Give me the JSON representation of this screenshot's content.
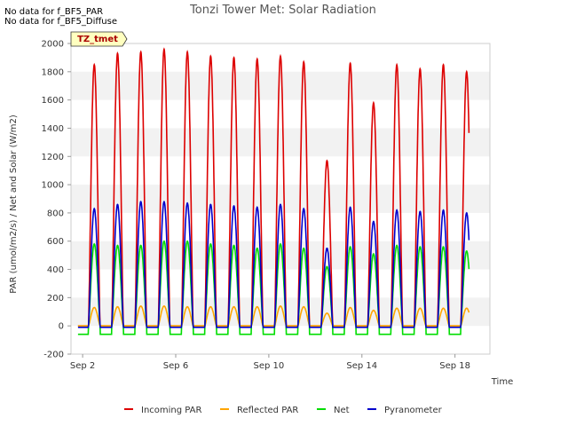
{
  "notes": [
    "No data for f_BF5_PAR",
    "No data for f_BF5_Diffuse"
  ],
  "chart_data": {
    "type": "line",
    "title": "Tonzi Tower Met: Solar Radiation",
    "xlabel": "Time",
    "ylabel": "PAR (umol/m2/s) / Net and Solar (W/m2)",
    "badge": "TZ_tmet",
    "xlim": [
      1.5,
      19.5
    ],
    "ylim": [
      -200,
      2000
    ],
    "xticks": [
      {
        "value": 2,
        "label": "Sep 2"
      },
      {
        "value": 6,
        "label": "Sep 6"
      },
      {
        "value": 10,
        "label": "Sep 10"
      },
      {
        "value": 14,
        "label": "Sep 14"
      },
      {
        "value": 18,
        "label": "Sep 18"
      }
    ],
    "yticks": [
      -200,
      0,
      200,
      400,
      600,
      800,
      1000,
      1200,
      1400,
      1600,
      1800,
      2000
    ],
    "grid_bands": true,
    "legend_position": "bottom-center",
    "days": [
      2,
      3,
      4,
      5,
      6,
      7,
      8,
      9,
      10,
      11,
      12,
      13,
      14,
      15,
      16,
      17,
      18
    ],
    "series": [
      {
        "name": "Incoming PAR",
        "color": "#dd0000",
        "baseline": 0,
        "day_peaks": [
          1850,
          1930,
          1940,
          1960,
          1940,
          1910,
          1900,
          1890,
          1910,
          1870,
          1170,
          1860,
          1580,
          1850,
          1820,
          1850,
          1800
        ]
      },
      {
        "name": "Reflected PAR",
        "color": "#ffa500",
        "baseline": 0,
        "day_peaks": [
          130,
          135,
          140,
          140,
          135,
          135,
          135,
          135,
          140,
          135,
          90,
          130,
          110,
          125,
          125,
          125,
          125
        ]
      },
      {
        "name": "Net",
        "color": "#00dd00",
        "baseline": -60,
        "day_peaks": [
          580,
          570,
          570,
          600,
          600,
          580,
          570,
          550,
          580,
          550,
          420,
          560,
          510,
          570,
          560,
          560,
          530
        ]
      },
      {
        "name": "Pyranometer",
        "color": "#0000cc",
        "baseline": -10,
        "day_peaks": [
          830,
          860,
          880,
          880,
          870,
          860,
          850,
          840,
          860,
          830,
          550,
          840,
          740,
          820,
          810,
          820,
          800
        ]
      }
    ]
  }
}
